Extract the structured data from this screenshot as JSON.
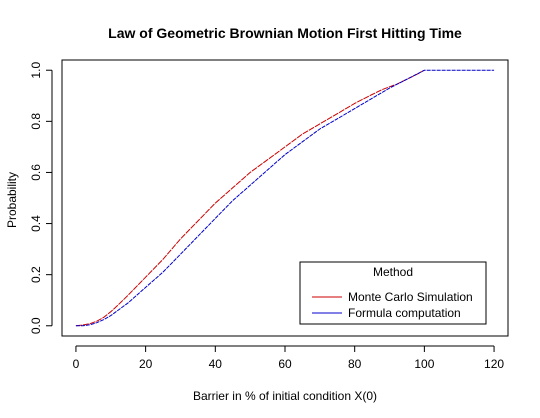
{
  "chart_data": {
    "type": "line",
    "title": "Law of Geometric Brownian Motion First Hitting Time",
    "xlabel": "Barrier in % of initial condition X(0)",
    "ylabel": "Probability",
    "xlim": [
      -4,
      124
    ],
    "ylim": [
      -0.04,
      1.04
    ],
    "xticks": [
      0,
      20,
      40,
      60,
      80,
      100,
      120
    ],
    "yticks": [
      0.0,
      0.2,
      0.4,
      0.6,
      0.8,
      1.0
    ],
    "xtick_labels": [
      "0",
      "20",
      "40",
      "60",
      "80",
      "100",
      "120"
    ],
    "ytick_labels": [
      "0.0",
      "0.2",
      "0.4",
      "0.6",
      "0.8",
      "1.0"
    ],
    "grid": false,
    "legend": {
      "title": "Method",
      "placement": "bottom-right"
    },
    "series": [
      {
        "name": "Monte Carlo Simulation",
        "color": "#cc0000",
        "x": [
          0,
          2,
          4,
          6,
          8,
          10,
          12,
          15,
          20,
          25,
          30,
          35,
          40,
          45,
          50,
          55,
          60,
          65,
          70,
          75,
          80,
          85,
          88,
          90,
          92,
          95,
          98,
          100
        ],
        "y": [
          0.0,
          0.003,
          0.008,
          0.018,
          0.033,
          0.055,
          0.08,
          0.12,
          0.19,
          0.26,
          0.34,
          0.41,
          0.48,
          0.54,
          0.6,
          0.65,
          0.7,
          0.75,
          0.79,
          0.83,
          0.87,
          0.905,
          0.925,
          0.935,
          0.945,
          0.965,
          0.985,
          1.0
        ]
      },
      {
        "name": "Formula computation",
        "color": "#0000cc",
        "x": [
          0,
          2,
          4,
          6,
          8,
          10,
          15,
          20,
          25,
          30,
          35,
          40,
          45,
          50,
          55,
          60,
          65,
          70,
          75,
          80,
          85,
          90,
          95,
          100,
          105,
          110,
          115,
          120
        ],
        "y": [
          0.0,
          0.0,
          0.004,
          0.012,
          0.024,
          0.04,
          0.09,
          0.15,
          0.21,
          0.28,
          0.35,
          0.42,
          0.49,
          0.55,
          0.61,
          0.67,
          0.72,
          0.77,
          0.81,
          0.85,
          0.89,
          0.93,
          0.965,
          1.0,
          1.0,
          1.0,
          1.0,
          1.0
        ]
      }
    ]
  }
}
